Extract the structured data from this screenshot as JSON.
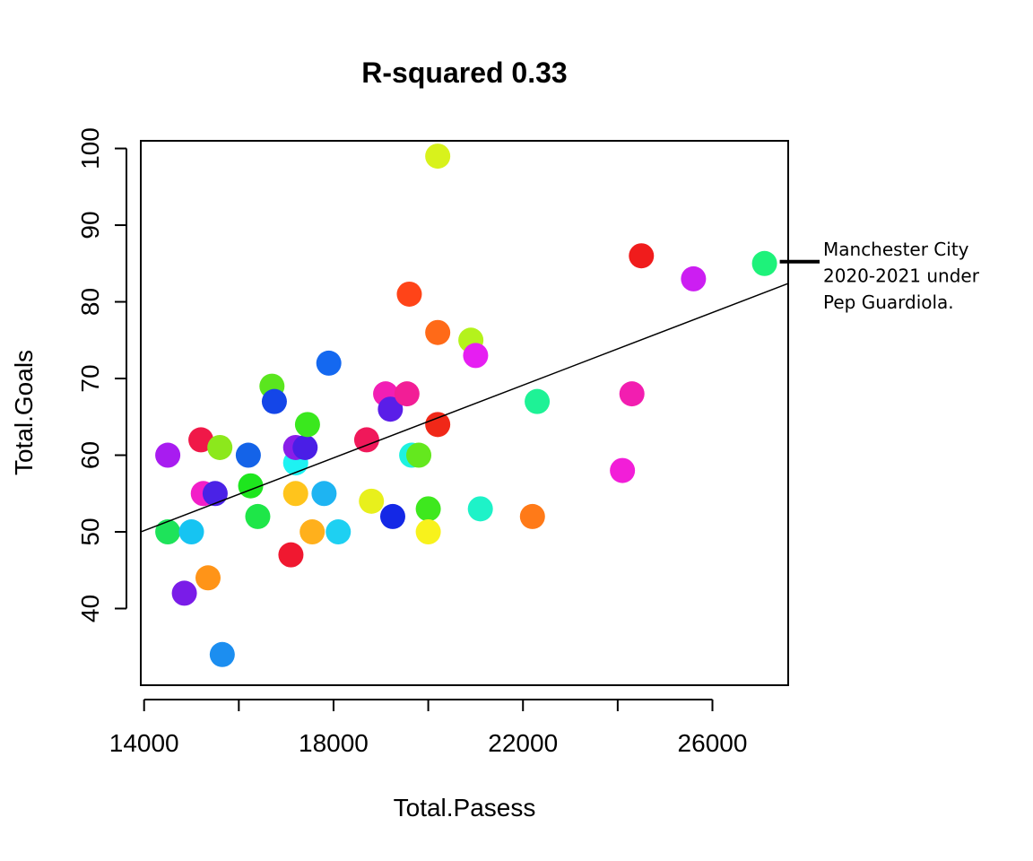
{
  "chart_data": {
    "type": "scatter",
    "title": "R-squared 0.33",
    "xlabel": "Total.Pasess",
    "ylabel": "Total.Goals",
    "xlim": [
      13930,
      27600
    ],
    "ylim": [
      30,
      101
    ],
    "xticks": [
      14000,
      18000,
      22000,
      26000
    ],
    "yticks": [
      40,
      50,
      60,
      70,
      80,
      90,
      100
    ],
    "grid": false,
    "legend": "none",
    "regression_line": {
      "x": [
        13930,
        27600
      ],
      "y": [
        50.0,
        82.4
      ]
    },
    "annotation": {
      "lines": [
        "Manchester City",
        "2020-2021 under",
        "Pep Guardiola."
      ],
      "points_to": {
        "x": 27100,
        "y": 85
      }
    },
    "points": [
      {
        "x": 14500,
        "y": 60,
        "color": "#a81cf0"
      },
      {
        "x": 14500,
        "y": 50,
        "color": "#1ee35a"
      },
      {
        "x": 14850,
        "y": 42,
        "color": "#7a1ce8"
      },
      {
        "x": 15000,
        "y": 50,
        "color": "#16c4f2"
      },
      {
        "x": 15200,
        "y": 62,
        "color": "#f01848"
      },
      {
        "x": 15250,
        "y": 55,
        "color": "#f21ec8"
      },
      {
        "x": 15350,
        "y": 44,
        "color": "#ff9418"
      },
      {
        "x": 15500,
        "y": 55,
        "color": "#4a22e6"
      },
      {
        "x": 15600,
        "y": 61,
        "color": "#8ce81c"
      },
      {
        "x": 15650,
        "y": 34,
        "color": "#1c8ef0"
      },
      {
        "x": 16200,
        "y": 60,
        "color": "#1463e8"
      },
      {
        "x": 16250,
        "y": 56,
        "color": "#1ee61e"
      },
      {
        "x": 16400,
        "y": 52,
        "color": "#1ee648"
      },
      {
        "x": 16700,
        "y": 69,
        "color": "#5ae61e"
      },
      {
        "x": 16750,
        "y": 67,
        "color": "#1446e8"
      },
      {
        "x": 17100,
        "y": 47,
        "color": "#f01830"
      },
      {
        "x": 17200,
        "y": 59,
        "color": "#1ef2f2"
      },
      {
        "x": 17200,
        "y": 55,
        "color": "#ffc41c"
      },
      {
        "x": 17200,
        "y": 61,
        "color": "#8a1ee8"
      },
      {
        "x": 17400,
        "y": 61,
        "color": "#4a1ee6"
      },
      {
        "x": 17450,
        "y": 64,
        "color": "#3ae81e"
      },
      {
        "x": 17550,
        "y": 50,
        "color": "#ffb01c"
      },
      {
        "x": 17800,
        "y": 55,
        "color": "#1eb4f2"
      },
      {
        "x": 17900,
        "y": 72,
        "color": "#1468f0"
      },
      {
        "x": 18100,
        "y": 50,
        "color": "#1ed0f2"
      },
      {
        "x": 18700,
        "y": 62,
        "color": "#f0185a"
      },
      {
        "x": 18800,
        "y": 54,
        "color": "#e8f01c"
      },
      {
        "x": 19100,
        "y": 68,
        "color": "#f21eb4"
      },
      {
        "x": 19200,
        "y": 66,
        "color": "#5a1ee8"
      },
      {
        "x": 19250,
        "y": 52,
        "color": "#1428e6"
      },
      {
        "x": 19550,
        "y": 68,
        "color": "#f21e96"
      },
      {
        "x": 19600,
        "y": 81,
        "color": "#ff4418"
      },
      {
        "x": 19650,
        "y": 60,
        "color": "#1ef2e0"
      },
      {
        "x": 19800,
        "y": 60,
        "color": "#64e81e"
      },
      {
        "x": 20000,
        "y": 53,
        "color": "#3ee81e"
      },
      {
        "x": 20000,
        "y": 50,
        "color": "#f8f21c"
      },
      {
        "x": 20200,
        "y": 64,
        "color": "#f02818"
      },
      {
        "x": 20200,
        "y": 99,
        "color": "#d8f21c"
      },
      {
        "x": 20200,
        "y": 76,
        "color": "#ff6a18"
      },
      {
        "x": 20900,
        "y": 75,
        "color": "#b4f21c"
      },
      {
        "x": 21000,
        "y": 73,
        "color": "#e61ef2"
      },
      {
        "x": 21100,
        "y": 53,
        "color": "#1ef2c8"
      },
      {
        "x": 22200,
        "y": 52,
        "color": "#ff7a18"
      },
      {
        "x": 22300,
        "y": 67,
        "color": "#1ef296"
      },
      {
        "x": 24100,
        "y": 58,
        "color": "#f21ed8"
      },
      {
        "x": 24300,
        "y": 68,
        "color": "#f21eb0"
      },
      {
        "x": 24500,
        "y": 86,
        "color": "#f01c1c"
      },
      {
        "x": 25600,
        "y": 83,
        "color": "#cc1ef2"
      },
      {
        "x": 27100,
        "y": 85,
        "color": "#1ef27a"
      }
    ]
  }
}
